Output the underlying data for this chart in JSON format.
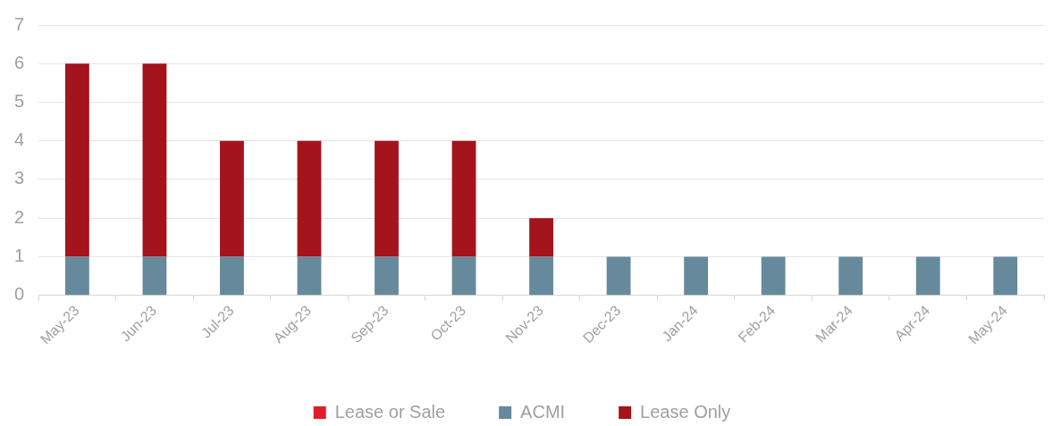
{
  "chart_data": {
    "type": "bar",
    "stacked": true,
    "grid": "y",
    "legend": "bottom",
    "categories": [
      "May-23",
      "Jun-23",
      "Jul-23",
      "Aug-23",
      "Sep-23",
      "Oct-23",
      "Nov-23",
      "Dec-23",
      "Jan-24",
      "Feb-24",
      "Mar-24",
      "Apr-24",
      "May-24"
    ],
    "series": [
      {
        "name": "Lease or Sale",
        "color": "#e01e2b",
        "values": [
          0,
          0,
          0,
          0,
          0,
          0,
          0,
          0,
          0,
          0,
          0,
          0,
          0
        ]
      },
      {
        "name": "ACMI",
        "color": "#668a9b",
        "values": [
          1,
          1,
          1,
          1,
          1,
          1,
          1,
          1,
          1,
          1,
          1,
          1,
          1
        ]
      },
      {
        "name": "Lease Only",
        "color": "#a3141c",
        "values": [
          5,
          5,
          3,
          3,
          3,
          3,
          1,
          0,
          0,
          0,
          0,
          0,
          0
        ]
      }
    ],
    "ylim": [
      0,
      7
    ],
    "yticks": [
      0,
      1,
      2,
      3,
      4,
      5,
      6,
      7
    ]
  }
}
